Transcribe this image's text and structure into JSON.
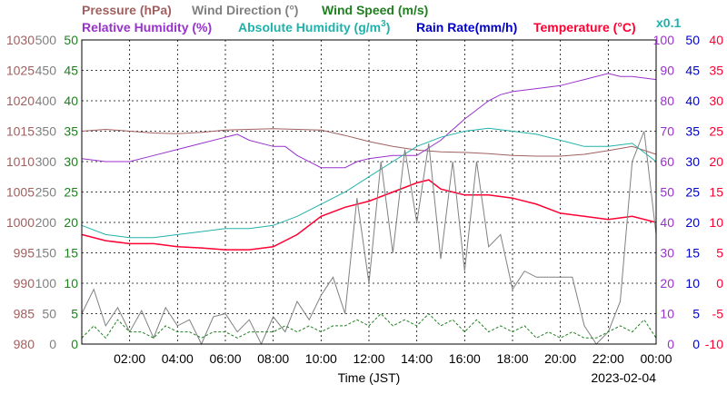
{
  "chart_data": {
    "type": "line",
    "legend_row1": [
      {
        "text": "Pressure (hPa)",
        "color": "#a06060"
      },
      {
        "text": "Wind Direction (°)",
        "color": "#808080"
      },
      {
        "text": "Wind Speed (m/s)",
        "color": "#208020"
      }
    ],
    "legend_row2": [
      {
        "text": "Relative Humidity (%)",
        "color": "#9932cc"
      },
      {
        "text": "Absolute Humidity (g/m",
        "sup": "3",
        "tail": ")",
        "color": "#20b2aa"
      },
      {
        "text": "Rain Rate(mm/h)",
        "color": "#0000cd"
      },
      {
        "text": "Temperature (°C)",
        "color": "#ff0033"
      }
    ],
    "right_axis_unit": {
      "text": "x0.1",
      "color": "#20b2aa"
    },
    "xlabel": "Time (JST)",
    "date_label": "2023-02-04",
    "x_range_hours": [
      0,
      24
    ],
    "x_ticks": [
      "02:00",
      "04:00",
      "06:00",
      "08:00",
      "10:00",
      "12:00",
      "14:00",
      "16:00",
      "18:00",
      "20:00",
      "22:00",
      "00:00"
    ],
    "axes": {
      "pressure": {
        "color": "#a06060",
        "ticks": [
          "1030",
          "1025",
          "1020",
          "1015",
          "1010",
          "1005",
          "1000",
          "995",
          "990",
          "985",
          "980"
        ]
      },
      "wind_direction": {
        "color": "#808080",
        "ticks": [
          "500",
          "450",
          "400",
          "350",
          "300",
          "250",
          "200",
          "150",
          "100",
          "50",
          "0"
        ]
      },
      "wind_speed": {
        "color": "#208020",
        "ticks": [
          "50",
          "45",
          "40",
          "35",
          "30",
          "25",
          "20",
          "15",
          "10",
          "5",
          "0"
        ]
      },
      "humidity": {
        "color": "#9932cc",
        "ticks": [
          "100",
          "90",
          "80",
          "70",
          "60",
          "50",
          "40",
          "30",
          "20",
          "10",
          "0"
        ]
      },
      "rain_rate": {
        "color": "#0000cd",
        "ticks": [
          "50",
          "45",
          "40",
          "35",
          "30",
          "25",
          "20",
          "15",
          "10",
          "5",
          "0"
        ]
      },
      "temperature": {
        "color": "#ff0033",
        "ticks": [
          "40",
          "35",
          "30",
          "25",
          "20",
          "15",
          "10",
          "5",
          "0",
          "-5",
          "-10"
        ]
      }
    },
    "grid": true,
    "series": [
      {
        "name": "Pressure (hPa)",
        "color": "#a06060",
        "axis": "pressure",
        "range": [
          980,
          1030
        ],
        "x": [
          0,
          1,
          2,
          3,
          4,
          5,
          6,
          7,
          8,
          9,
          10,
          11,
          12,
          13,
          14,
          15,
          16,
          17,
          18,
          19,
          20,
          21,
          22,
          23,
          24
        ],
        "y": [
          1015.0,
          1015.3,
          1015.0,
          1014.7,
          1014.6,
          1014.8,
          1015.2,
          1015.3,
          1015.4,
          1015.3,
          1015.2,
          1014.3,
          1013.3,
          1012.5,
          1011.9,
          1011.6,
          1011.5,
          1011.3,
          1011.0,
          1010.9,
          1010.9,
          1011.2,
          1011.8,
          1012.5,
          1011.2
        ]
      },
      {
        "name": "Relative Humidity (%)",
        "color": "#9932cc",
        "axis": "humidity",
        "range": [
          0,
          100
        ],
        "x": [
          0,
          1,
          1.5,
          2,
          3,
          4,
          5,
          6,
          6.5,
          7,
          8,
          8.5,
          9,
          10,
          11,
          11.5,
          12,
          13,
          14,
          15,
          16,
          17,
          17.5,
          18,
          19,
          20,
          21,
          22,
          22.5,
          23,
          24
        ],
        "y": [
          61,
          60,
          60,
          60,
          62,
          64,
          66,
          68,
          69,
          67,
          65,
          65,
          62,
          58,
          58,
          60,
          61,
          62,
          62,
          67,
          74,
          80,
          82,
          83,
          84,
          85,
          87,
          89,
          88,
          88,
          87
        ]
      },
      {
        "name": "Absolute Humidity (g/m3)",
        "color": "#20b2aa",
        "axis": "humidity",
        "range": [
          0,
          100
        ],
        "x": [
          0,
          1,
          2,
          3,
          4,
          5,
          6,
          7,
          8,
          9,
          10,
          11,
          12,
          13,
          14,
          15,
          16,
          17,
          18,
          19,
          20,
          21,
          22,
          23,
          24
        ],
        "y": [
          39,
          36,
          35,
          35,
          36,
          37,
          38,
          38,
          39,
          42,
          46,
          50,
          55,
          60,
          65,
          68,
          70,
          71,
          70,
          69,
          67,
          65,
          65,
          66,
          60
        ]
      },
      {
        "name": "Temperature (°C)",
        "color": "#ff0033",
        "axis": "temperature",
        "range": [
          -10,
          40
        ],
        "x": [
          0,
          1,
          2,
          3,
          4,
          5,
          6,
          7,
          8,
          9,
          10,
          11,
          12,
          13,
          14,
          14.5,
          15,
          16,
          17,
          18,
          19,
          20,
          21,
          22,
          23,
          24
        ],
        "y": [
          8.0,
          7.0,
          6.5,
          6.5,
          6.0,
          5.8,
          5.5,
          5.5,
          6.0,
          8.0,
          11.0,
          12.5,
          13.5,
          15.0,
          16.5,
          17.0,
          15.5,
          14.5,
          14.5,
          14.0,
          13.0,
          11.5,
          11.0,
          10.5,
          11.0,
          10.0
        ]
      },
      {
        "name": "Wind Direction (°)",
        "color": "#808080",
        "axis": "wind_direction",
        "range": [
          0,
          500
        ],
        "x": [
          0,
          0.5,
          1,
          1.5,
          2,
          2.5,
          3,
          3.5,
          4,
          4.5,
          5,
          5.5,
          6,
          6.5,
          7,
          7.5,
          8,
          8.5,
          9,
          9.5,
          10,
          10.5,
          11,
          11.5,
          12,
          12.5,
          13,
          13.5,
          14,
          14.5,
          15,
          15.5,
          16,
          16.5,
          17,
          17.5,
          18,
          18.5,
          19,
          19.5,
          20,
          20.5,
          21,
          21.5,
          22,
          22.5,
          23,
          23.5,
          24
        ],
        "y": [
          50,
          90,
          30,
          60,
          20,
          55,
          10,
          60,
          30,
          40,
          0,
          45,
          50,
          20,
          40,
          0,
          45,
          20,
          70,
          40,
          80,
          110,
          50,
          240,
          100,
          300,
          150,
          320,
          200,
          330,
          140,
          300,
          120,
          300,
          160,
          180,
          90,
          120,
          110,
          110,
          110,
          110,
          30,
          0,
          20,
          70,
          300,
          350,
          180
        ]
      },
      {
        "name": "Wind Speed (m/s)",
        "color": "#208020",
        "axis": "wind_speed",
        "range": [
          0,
          50
        ],
        "x": [
          0,
          0.5,
          1,
          1.5,
          2,
          2.5,
          3,
          3.5,
          4,
          4.5,
          5,
          5.5,
          6,
          6.5,
          7,
          7.5,
          8,
          8.5,
          9,
          9.5,
          10,
          10.5,
          11,
          11.5,
          12,
          12.5,
          13,
          13.5,
          14,
          14.5,
          15,
          15.5,
          16,
          16.5,
          17,
          17.5,
          18,
          18.5,
          19,
          19.5,
          20,
          20.5,
          21,
          21.5,
          22,
          22.5,
          23,
          23.5,
          24
        ],
        "y": [
          1,
          3,
          1,
          4,
          2,
          2,
          1,
          3,
          2,
          2,
          1,
          2,
          2,
          1,
          2,
          2,
          2,
          3,
          2,
          3,
          2,
          3,
          3,
          4,
          3,
          5,
          3,
          4,
          3,
          5,
          3,
          4,
          2,
          4,
          2,
          3,
          2,
          3,
          1,
          2,
          1,
          2,
          1,
          1,
          2,
          3,
          2,
          4,
          1
        ]
      }
    ]
  }
}
